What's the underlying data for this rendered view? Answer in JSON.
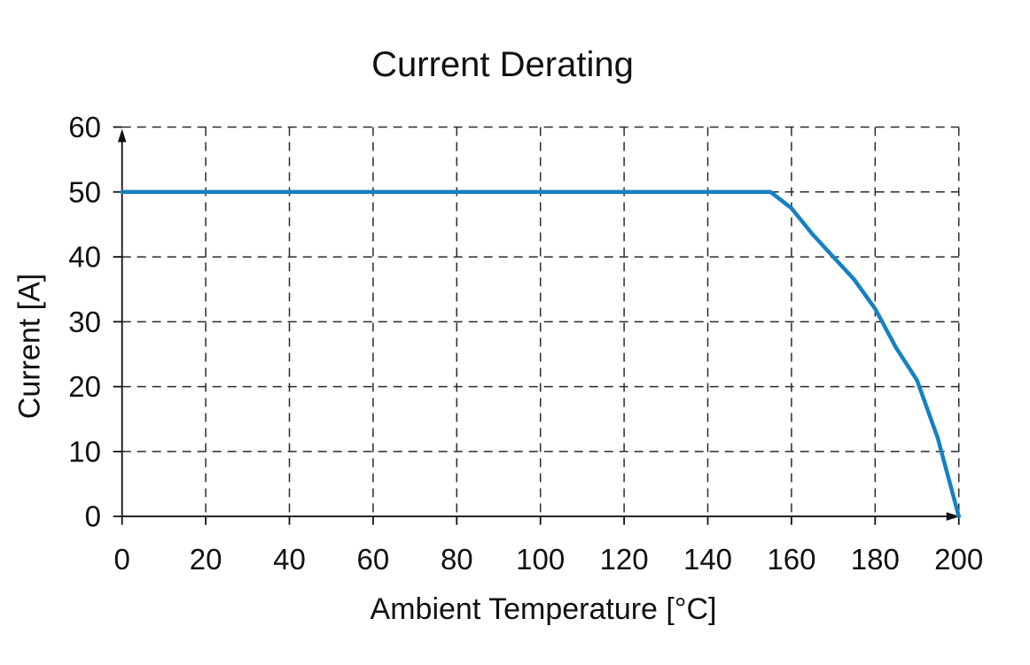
{
  "figure": {
    "title": "Current Derating",
    "background": "#ffffff"
  },
  "chart_data": {
    "type": "line",
    "title": "Current Derating",
    "xlabel": "Ambient Temperature [°C]",
    "ylabel": "Current [A]",
    "xlim": [
      0,
      200
    ],
    "ylim": [
      0,
      60
    ],
    "x_ticks": [
      0,
      20,
      40,
      60,
      80,
      100,
      120,
      140,
      160,
      180,
      200
    ],
    "y_ticks": [
      0,
      10,
      20,
      30,
      40,
      50,
      60
    ],
    "grid": "dashed",
    "legend": "none",
    "axis_arrows": true,
    "series": [
      {
        "name": "derating-curve",
        "color": "#1581C2",
        "points": [
          [
            0,
            50
          ],
          [
            155,
            50
          ],
          [
            160,
            47.5
          ],
          [
            165,
            43.5
          ],
          [
            170,
            40
          ],
          [
            175,
            36.5
          ],
          [
            180,
            32
          ],
          [
            185,
            26
          ],
          [
            190,
            21
          ],
          [
            195,
            12
          ],
          [
            200,
            0
          ]
        ]
      }
    ],
    "colors": {
      "line": "#1581C2",
      "axis": "#111111",
      "grid": "#2a2a2a",
      "text": "#111111"
    }
  }
}
